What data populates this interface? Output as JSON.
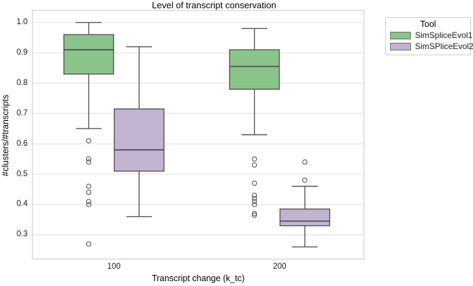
{
  "chart_data": {
    "type": "boxplot",
    "title": "Level of transcript conservation",
    "xlabel": "Transcript change (k_tc)",
    "ylabel": "#clusters/#transcripts",
    "categories": [
      "100",
      "200"
    ],
    "y_ticks": [
      1.0,
      0.9,
      0.8,
      0.7,
      0.6,
      0.5,
      0.4,
      0.3
    ],
    "y_tick_labels": [
      "1.0",
      "0.9",
      "0.8",
      "0.7",
      "0.6",
      "0.5",
      "0.4",
      "0.3"
    ],
    "ylim": [
      0.22,
      1.04
    ],
    "grid": "horizontal",
    "legend": {
      "title": "Tool",
      "position": "outside-top-right"
    },
    "colors": {
      "series1_fill": "#8bc48b",
      "series2_fill": "#c2b3d2",
      "box_stroke": "#545454",
      "gridline": "#e4e4e4",
      "plot_border": "#d6d6d6"
    },
    "series": [
      {
        "name": "SimSpliceEvol1",
        "color": "#8bc48b",
        "boxes": [
          {
            "category": "100",
            "whisker_low": 0.65,
            "q1": 0.83,
            "median": 0.91,
            "q3": 0.96,
            "whisker_high": 1.0,
            "outliers": [
              0.61,
              0.55,
              0.54,
              0.46,
              0.44,
              0.41,
              0.4,
              0.27
            ]
          },
          {
            "category": "200",
            "whisker_low": 0.63,
            "q1": 0.78,
            "median": 0.855,
            "q3": 0.91,
            "whisker_high": 0.98,
            "outliers": [
              0.55,
              0.53,
              0.47,
              0.43,
              0.42,
              0.41,
              0.4,
              0.37,
              0.365
            ]
          }
        ]
      },
      {
        "name": "SimSPliceEvol2",
        "color": "#c2b3d2",
        "boxes": [
          {
            "category": "100",
            "whisker_low": 0.36,
            "q1": 0.51,
            "median": 0.58,
            "q3": 0.715,
            "whisker_high": 0.92,
            "outliers": []
          },
          {
            "category": "200",
            "whisker_low": 0.26,
            "q1": 0.33,
            "median": 0.345,
            "q3": 0.385,
            "whisker_high": 0.46,
            "outliers": [
              0.48,
              0.54
            ]
          }
        ]
      }
    ]
  }
}
